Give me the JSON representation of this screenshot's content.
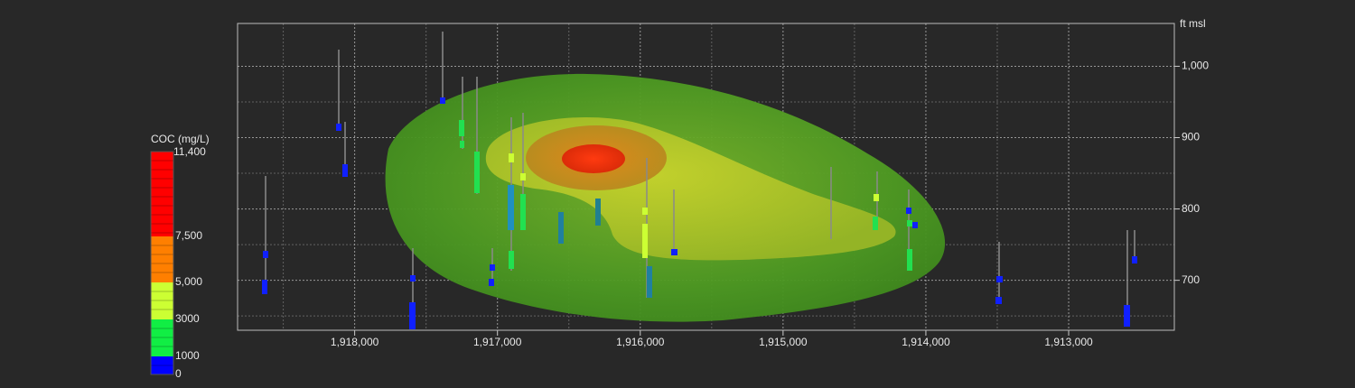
{
  "chart_data": {
    "type": "plume-section",
    "y_axis_label": "ft msl",
    "xlim": [
      1918820,
      1912260
    ],
    "ylim": [
      630,
      1060
    ],
    "xticks": [
      {
        "value": 1918000,
        "label": "1,918,000"
      },
      {
        "value": 1917000,
        "label": "1,917,000"
      },
      {
        "value": 1916000,
        "label": "1,916,000"
      },
      {
        "value": 1915000,
        "label": "1,915,000"
      },
      {
        "value": 1914000,
        "label": "1,914,000"
      },
      {
        "value": 1913000,
        "label": "1,913,000"
      }
    ],
    "xminorticks": [
      1918500,
      1917500,
      1916500,
      1915500,
      1914500,
      1913500
    ],
    "yticks": [
      {
        "value": 1000,
        "label": "1,000"
      },
      900,
      800,
      700
    ],
    "yminorticks": [
      950,
      850,
      750,
      650
    ],
    "grid": true,
    "legend": {
      "title": "COC (mg/L)",
      "stops": [
        {
          "value": 11400,
          "label": "11,400"
        },
        {
          "value": 7500,
          "label": "7,500"
        },
        {
          "value": 5000,
          "label": "5,000"
        },
        3000,
        1000,
        0
      ],
      "colors": [
        "#ff0000",
        "#ff7f00",
        "#ccff33",
        "#11ee44",
        "#0000ff"
      ]
    }
  }
}
